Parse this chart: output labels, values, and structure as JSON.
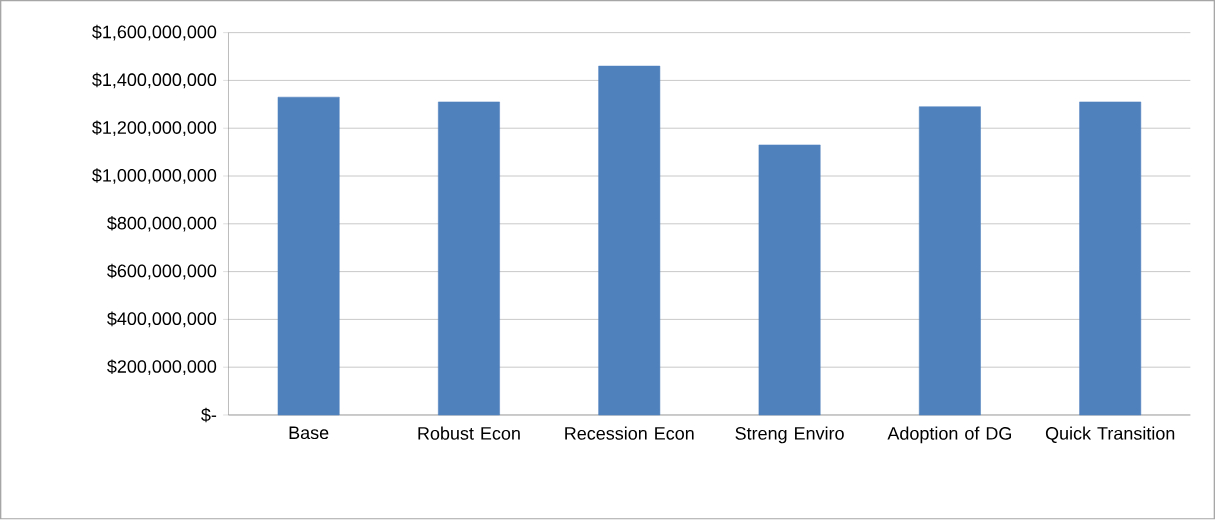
{
  "chart_data": {
    "type": "bar",
    "categories": [
      "Base",
      "Robust Econ",
      "Recession Econ",
      "Streng Enviro",
      "Adoption of DG",
      "Quick Transition"
    ],
    "values": [
      1330000000,
      1310000000,
      1460000000,
      1130000000,
      1290000000,
      1310000000
    ],
    "color": "#4f81bd",
    "ylim": [
      0,
      1600000000
    ],
    "yticks": [
      {
        "value": 0,
        "label": "$-"
      },
      {
        "value": 200000000,
        "label": "$200,000,000"
      },
      {
        "value": 400000000,
        "label": "$400,000,000"
      },
      {
        "value": 600000000,
        "label": "$600,000,000"
      },
      {
        "value": 800000000,
        "label": "$800,000,000"
      },
      {
        "value": 1000000000,
        "label": "$1,000,000,000"
      },
      {
        "value": 1200000000,
        "label": "$1,200,000,000"
      },
      {
        "value": 1400000000,
        "label": "$1,400,000,000"
      },
      {
        "value": 1600000000,
        "label": "$1,600,000,000"
      }
    ],
    "grid": "y"
  }
}
